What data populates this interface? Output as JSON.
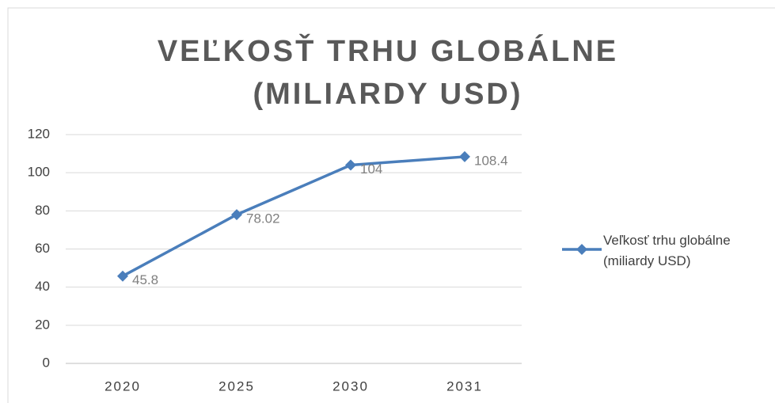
{
  "chart_data": {
    "type": "line",
    "title": "VEĽKOSŤ TRHU GLOBÁLNE (MILIARDY USD)",
    "categories": [
      "2020",
      "2025",
      "2030",
      "2031"
    ],
    "series": [
      {
        "name": "Veľkosť trhu globálne (miliardy USD)",
        "color": "#4a7ebb",
        "values": [
          45.8,
          78.02,
          104,
          108.4
        ]
      }
    ],
    "ylim": [
      0,
      120
    ],
    "yticks": [
      0,
      20,
      40,
      60,
      80,
      100,
      120
    ],
    "grid": true,
    "legend": "right"
  }
}
